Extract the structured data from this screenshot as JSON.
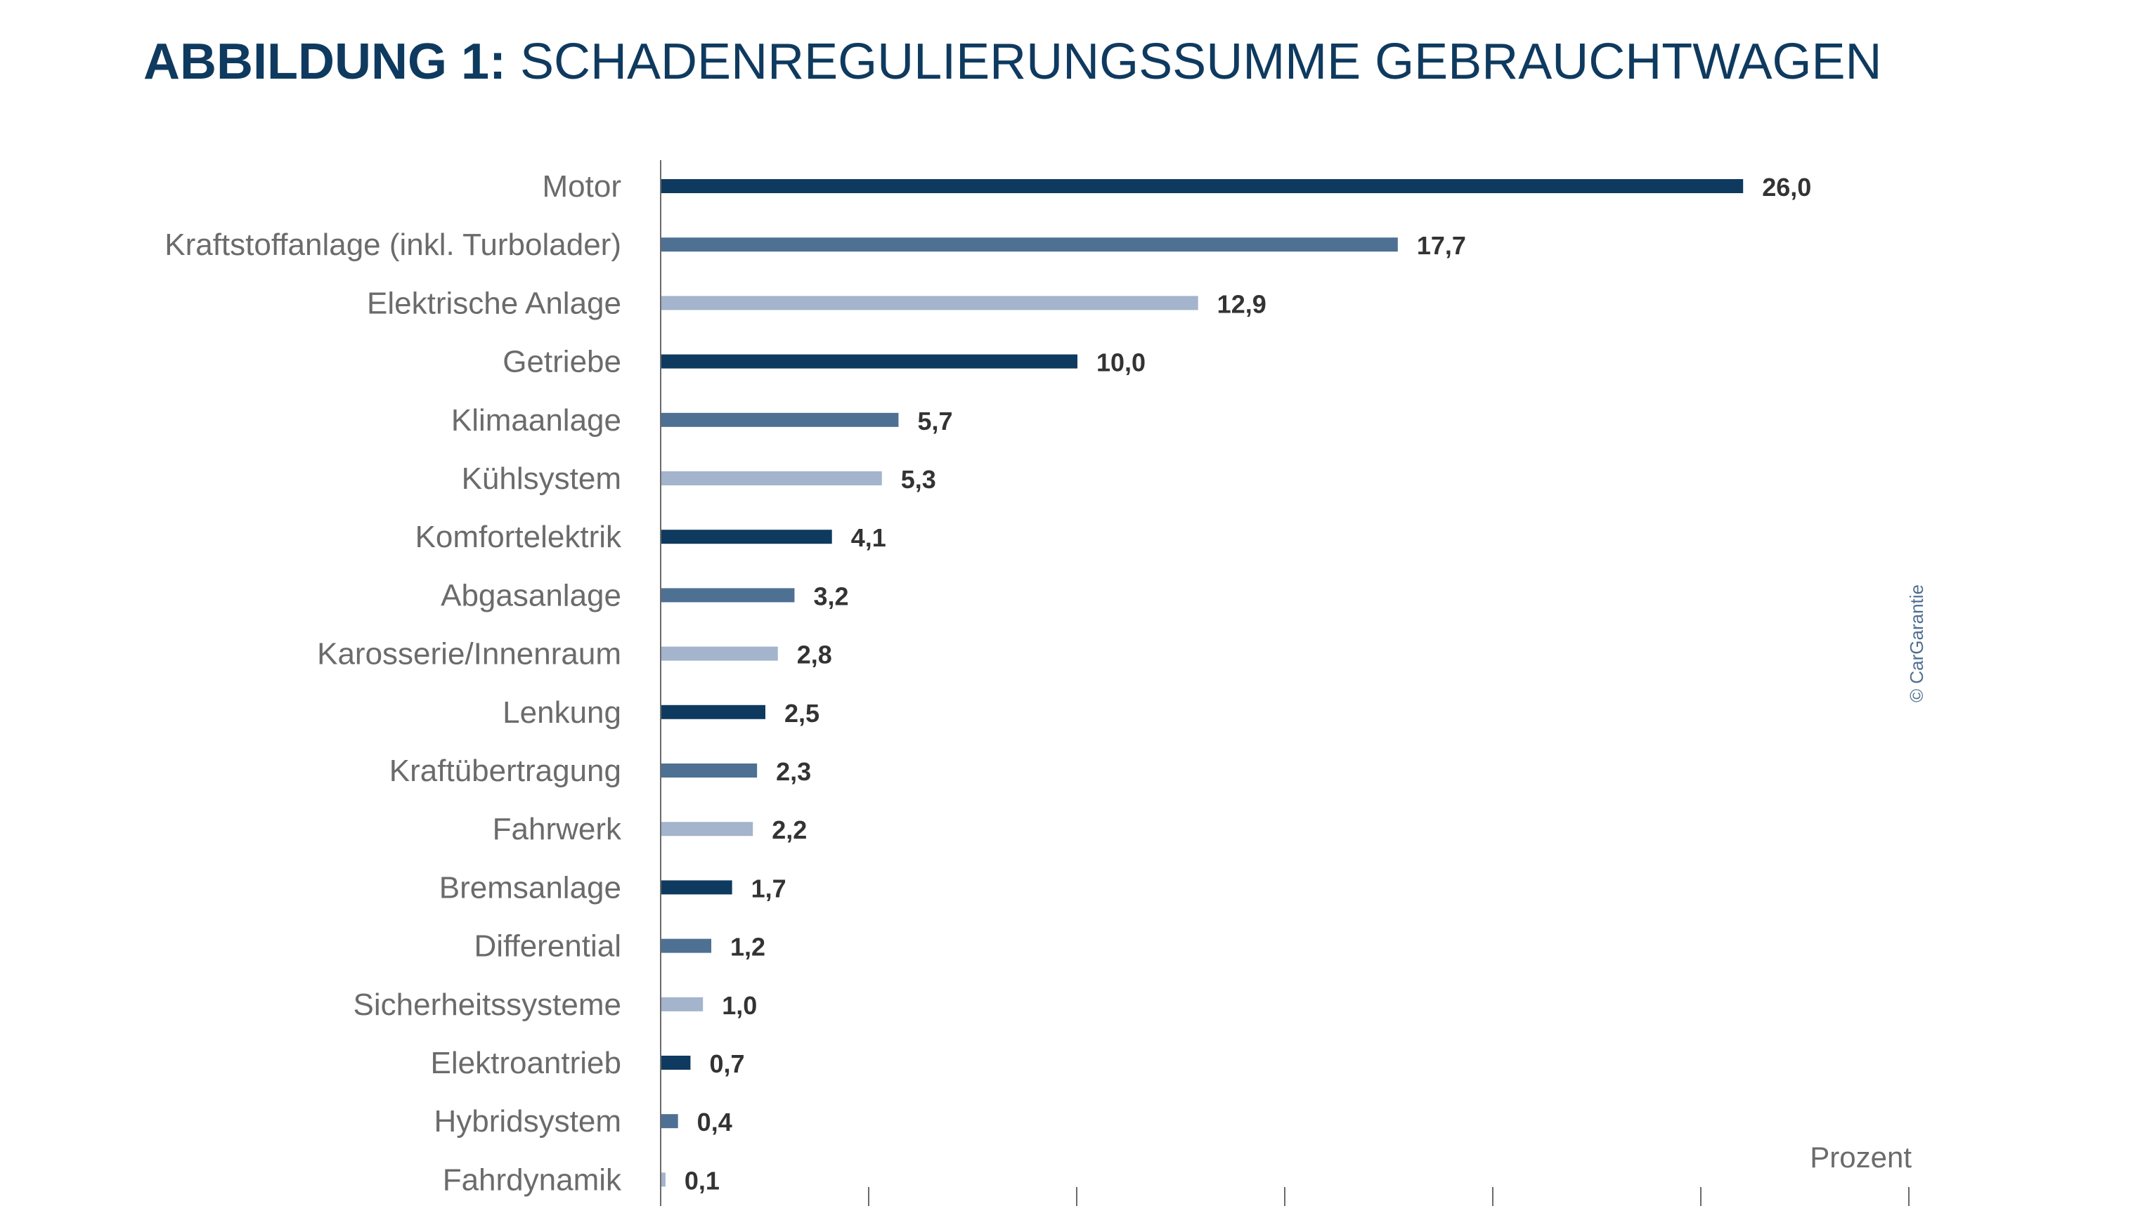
{
  "title": {
    "bold": "ABBILDUNG 1:",
    "rest": "SCHADENREGULIERUNGSSUMME GEBRAUCHTWAGEN"
  },
  "copyright": "© CarGarantie",
  "chart_data": {
    "type": "bar",
    "orientation": "horizontal",
    "xunit": "Prozent",
    "xlim": [
      0,
      30
    ],
    "grid": false,
    "categories": [
      "Motor",
      "Kraftstoffanlage (inkl. Turbolader)",
      "Elektrische Anlage",
      "Getriebe",
      "Klimaanlage",
      "Kühlsystem",
      "Komfortelektrik",
      "Abgasanlage",
      "Karosserie/Innenraum",
      "Lenkung",
      "Kraftübertragung",
      "Fahrwerk",
      "Bremsanlage",
      "Differential",
      "Sicherheitssysteme",
      "Elektroantrieb",
      "Hybridsystem",
      "Fahrdynamik"
    ],
    "values": [
      26.0,
      17.7,
      12.9,
      10.0,
      5.7,
      5.3,
      4.1,
      3.2,
      2.8,
      2.5,
      2.3,
      2.2,
      1.7,
      1.2,
      1.0,
      0.7,
      0.4,
      0.1
    ],
    "value_labels": [
      "26,0",
      "17,7",
      "12,9",
      "10,0",
      "5,7",
      "5,3",
      "4,1",
      "3,2",
      "2,8",
      "2,5",
      "2,3",
      "2,2",
      "1,7",
      "1,2",
      "1,0",
      "0,7",
      "0,4",
      "0,1"
    ],
    "colors": [
      "#0f3a5f",
      "#4e7093",
      "#a3b4cc"
    ]
  }
}
